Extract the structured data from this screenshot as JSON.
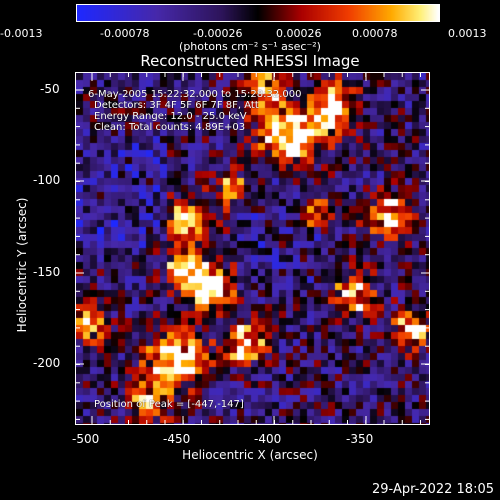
{
  "colorbar": {
    "ticks": [
      "-0.0013",
      "-0.00078",
      "-0.00026",
      "0.00026",
      "0.00078",
      "0.0013"
    ],
    "units_label": "(photons cm⁻² s⁻¹ asec⁻²)"
  },
  "plot": {
    "title": "Reconstructed RHESSI Image",
    "info": {
      "time": "6-May-2005 15:22:32.000 to 15:28:32.000",
      "detectors": "Detectors: 3F 4F 5F 6F 7F 8F, Att",
      "energy": "Energy Range: 12.0 - 25.0 keV",
      "clean": "Clean:   Total counts: 4.89E+03"
    },
    "peak": "Position of Peak = [-447,-147]",
    "xaxis": {
      "title": "Heliocentric X (arcsec)",
      "ticks": [
        "-500",
        "-450",
        "-400",
        "-350"
      ]
    },
    "yaxis": {
      "title": "Heliocentric Y (arcsec)",
      "ticks": [
        "-50",
        "-100",
        "-150",
        "-200"
      ]
    }
  },
  "footer": {
    "date": "29-Apr-2022 18:05"
  }
}
